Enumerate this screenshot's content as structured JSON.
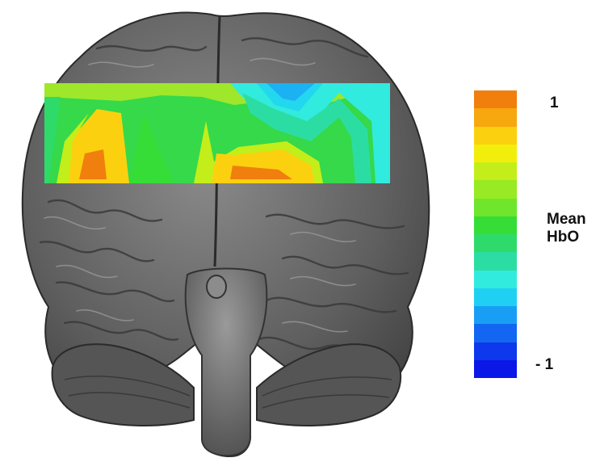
{
  "figure": {
    "colorbar": {
      "max_label": "1",
      "min_label": "- 1",
      "title_line1": "Mean",
      "title_line2": "HbO",
      "value_range": [
        -1,
        1
      ],
      "colors_top_to_bottom": [
        "#f07f0d",
        "#f6a80e",
        "#fbd10f",
        "#f2ee0c",
        "#c4ee19",
        "#97ea24",
        "#6fe52c",
        "#36dd36",
        "#2edb6a",
        "#2cdda3",
        "#31ebde",
        "#1fd0f3",
        "#189ff5",
        "#1266f2",
        "#0d38ec",
        "#0a17e6"
      ]
    },
    "overlay": {
      "description_free": true,
      "colors": {
        "background": "#35d94a",
        "high": "#f07f0d",
        "mid_high": "#fbd10f",
        "mid": "#9fe72a",
        "low_mid": "#2cdda3",
        "low": "#31ebde",
        "lowest": "#1456ee"
      }
    },
    "brain": {
      "fill": "#6a6a6a",
      "dark": "#2e2e2e",
      "light": "#a9a9a9"
    }
  }
}
